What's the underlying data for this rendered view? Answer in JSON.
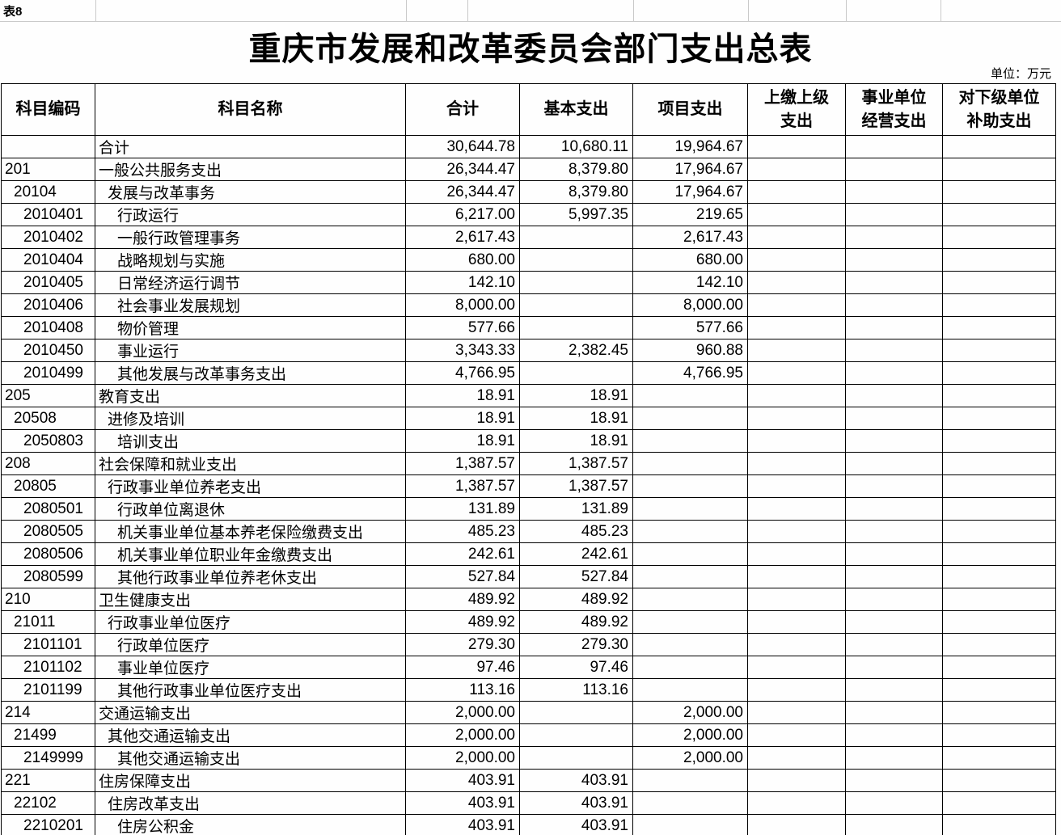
{
  "sheet": {
    "label": "表8",
    "title": "重庆市发展和改革委员会部门支出总表",
    "unit": "单位：万元"
  },
  "table": {
    "columns": [
      {
        "key": "code",
        "label": "科目编码"
      },
      {
        "key": "name",
        "label": "科目名称"
      },
      {
        "key": "total",
        "label": "合计"
      },
      {
        "key": "basic",
        "label": "基本支出"
      },
      {
        "key": "project",
        "label": "项目支出"
      },
      {
        "key": "upper_level",
        "label": "上缴上级\n支出"
      },
      {
        "key": "business_operation",
        "label": "事业单位\n经营支出"
      },
      {
        "key": "subsidy_lower",
        "label": "对下级单位\n补助支出"
      }
    ],
    "rows": [
      {
        "code": "",
        "name": "合计",
        "indent": 0,
        "values": [
          "30,644.78",
          "10,680.11",
          "19,964.67",
          "",
          "",
          ""
        ]
      },
      {
        "code": "201",
        "name": "一般公共服务支出",
        "indent": 0,
        "values": [
          "26,344.47",
          "8,379.80",
          "17,964.67",
          "",
          "",
          ""
        ]
      },
      {
        "code": "20104",
        "name": "发展与改革事务",
        "indent": 1,
        "values": [
          "26,344.47",
          "8,379.80",
          "17,964.67",
          "",
          "",
          ""
        ]
      },
      {
        "code": "2010401",
        "name": "行政运行",
        "indent": 2,
        "values": [
          "6,217.00",
          "5,997.35",
          "219.65",
          "",
          "",
          ""
        ]
      },
      {
        "code": "2010402",
        "name": "一般行政管理事务",
        "indent": 2,
        "values": [
          "2,617.43",
          "",
          "2,617.43",
          "",
          "",
          ""
        ]
      },
      {
        "code": "2010404",
        "name": "战略规划与实施",
        "indent": 2,
        "values": [
          "680.00",
          "",
          "680.00",
          "",
          "",
          ""
        ]
      },
      {
        "code": "2010405",
        "name": "日常经济运行调节",
        "indent": 2,
        "values": [
          "142.10",
          "",
          "142.10",
          "",
          "",
          ""
        ]
      },
      {
        "code": "2010406",
        "name": "社会事业发展规划",
        "indent": 2,
        "values": [
          "8,000.00",
          "",
          "8,000.00",
          "",
          "",
          ""
        ]
      },
      {
        "code": "2010408",
        "name": "物价管理",
        "indent": 2,
        "values": [
          "577.66",
          "",
          "577.66",
          "",
          "",
          ""
        ]
      },
      {
        "code": "2010450",
        "name": "事业运行",
        "indent": 2,
        "values": [
          "3,343.33",
          "2,382.45",
          "960.88",
          "",
          "",
          ""
        ]
      },
      {
        "code": "2010499",
        "name": "其他发展与改革事务支出",
        "indent": 2,
        "values": [
          "4,766.95",
          "",
          "4,766.95",
          "",
          "",
          ""
        ]
      },
      {
        "code": "205",
        "name": "教育支出",
        "indent": 0,
        "values": [
          "18.91",
          "18.91",
          "",
          "",
          "",
          ""
        ]
      },
      {
        "code": "20508",
        "name": "进修及培训",
        "indent": 1,
        "values": [
          "18.91",
          "18.91",
          "",
          "",
          "",
          ""
        ]
      },
      {
        "code": "2050803",
        "name": "培训支出",
        "indent": 2,
        "values": [
          "18.91",
          "18.91",
          "",
          "",
          "",
          ""
        ]
      },
      {
        "code": "208",
        "name": "社会保障和就业支出",
        "indent": 0,
        "values": [
          "1,387.57",
          "1,387.57",
          "",
          "",
          "",
          ""
        ]
      },
      {
        "code": "20805",
        "name": "行政事业单位养老支出",
        "indent": 1,
        "values": [
          "1,387.57",
          "1,387.57",
          "",
          "",
          "",
          ""
        ]
      },
      {
        "code": "2080501",
        "name": "行政单位离退休",
        "indent": 2,
        "values": [
          "131.89",
          "131.89",
          "",
          "",
          "",
          ""
        ]
      },
      {
        "code": "2080505",
        "name": "机关事业单位基本养老保险缴费支出",
        "indent": 2,
        "values": [
          "485.23",
          "485.23",
          "",
          "",
          "",
          ""
        ]
      },
      {
        "code": "2080506",
        "name": "机关事业单位职业年金缴费支出",
        "indent": 2,
        "values": [
          "242.61",
          "242.61",
          "",
          "",
          "",
          ""
        ]
      },
      {
        "code": "2080599",
        "name": "其他行政事业单位养老休支出",
        "indent": 2,
        "values": [
          "527.84",
          "527.84",
          "",
          "",
          "",
          ""
        ]
      },
      {
        "code": "210",
        "name": "卫生健康支出",
        "indent": 0,
        "values": [
          "489.92",
          "489.92",
          "",
          "",
          "",
          ""
        ]
      },
      {
        "code": "21011",
        "name": "行政事业单位医疗",
        "indent": 1,
        "values": [
          "489.92",
          "489.92",
          "",
          "",
          "",
          ""
        ]
      },
      {
        "code": "2101101",
        "name": "行政单位医疗",
        "indent": 2,
        "values": [
          "279.30",
          "279.30",
          "",
          "",
          "",
          ""
        ]
      },
      {
        "code": "2101102",
        "name": "事业单位医疗",
        "indent": 2,
        "values": [
          "97.46",
          "97.46",
          "",
          "",
          "",
          ""
        ]
      },
      {
        "code": "2101199",
        "name": "其他行政事业单位医疗支出",
        "indent": 2,
        "values": [
          "113.16",
          "113.16",
          "",
          "",
          "",
          ""
        ]
      },
      {
        "code": "214",
        "name": "交通运输支出",
        "indent": 0,
        "values": [
          "2,000.00",
          "",
          "2,000.00",
          "",
          "",
          ""
        ]
      },
      {
        "code": "21499",
        "name": "其他交通运输支出",
        "indent": 1,
        "values": [
          "2,000.00",
          "",
          "2,000.00",
          "",
          "",
          ""
        ]
      },
      {
        "code": "2149999",
        "name": "其他交通运输支出",
        "indent": 2,
        "values": [
          "2,000.00",
          "",
          "2,000.00",
          "",
          "",
          ""
        ]
      },
      {
        "code": "221",
        "name": "住房保障支出",
        "indent": 0,
        "values": [
          "403.91",
          "403.91",
          "",
          "",
          "",
          ""
        ]
      },
      {
        "code": "22102",
        "name": "住房改革支出",
        "indent": 1,
        "values": [
          "403.91",
          "403.91",
          "",
          "",
          "",
          ""
        ]
      },
      {
        "code": "2210201",
        "name": "住房公积金",
        "indent": 2,
        "values": [
          "403.91",
          "403.91",
          "",
          "",
          "",
          ""
        ]
      }
    ]
  }
}
